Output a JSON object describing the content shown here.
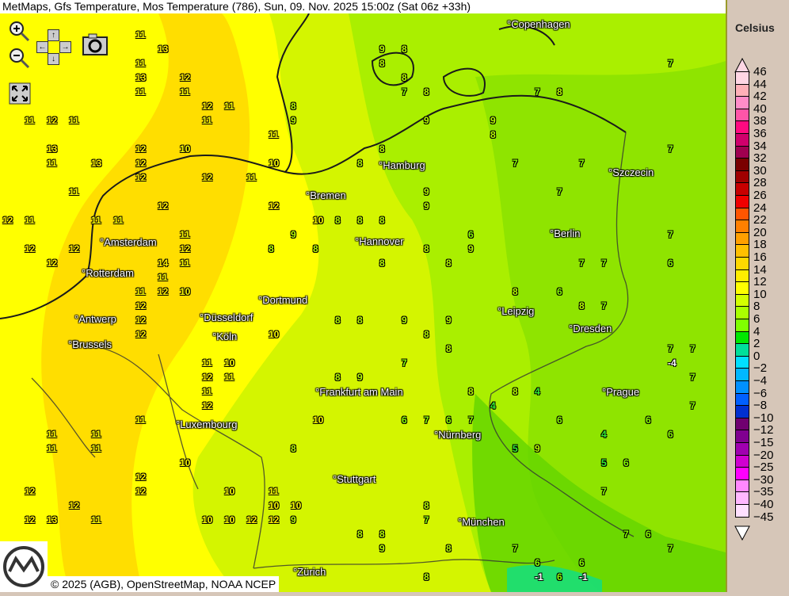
{
  "title": "MetMaps, Gfs Temperature, Mos Temperature (786), Sun, 09. Nov. 2025 15:00z (Sat 06z +33h)",
  "footer": "© 2025 (AGB), OpenStreetMap, NOAA NCEP",
  "logo_text": "METMAPS",
  "controls": {
    "icons": [
      "zoom-in-icon",
      "zoom-out-icon",
      "pan-up-icon",
      "pan-left-icon",
      "pan-right-icon",
      "pan-down-icon",
      "camera-icon",
      "fullscreen-icon"
    ]
  },
  "legend": {
    "title": "Celsius",
    "labels": [
      "46",
      "44",
      "42",
      "40",
      "38",
      "36",
      "34",
      "32",
      "30",
      "28",
      "26",
      "24",
      "22",
      "20",
      "18",
      "16",
      "14",
      "12",
      "10",
      "8",
      "6",
      "4",
      "2",
      "0",
      "−2",
      "−4",
      "−6",
      "−8",
      "−10",
      "−12",
      "−15",
      "−20",
      "−25",
      "−30",
      "−35",
      "−40",
      "−45"
    ],
    "colors": [
      "#ffd6e4",
      "#ffb0b8",
      "#ff8cc8",
      "#ff55a8",
      "#ff0a80",
      "#d0006c",
      "#a00050",
      "#7a0000",
      "#a00000",
      "#c80000",
      "#f00000",
      "#ff5500",
      "#ff8000",
      "#ffa000",
      "#ffc000",
      "#ffd800",
      "#ffee00",
      "#ffff00",
      "#d4ff00",
      "#aaff00",
      "#80ff00",
      "#00e800",
      "#00e09a",
      "#00e0ff",
      "#00b8ff",
      "#0090ff",
      "#0060ff",
      "#0030d0",
      "#700070",
      "#800090",
      "#a000b0",
      "#d000d0",
      "#ff00ff",
      "#ff88ff",
      "#ffb8ff",
      "#ffe0ff"
    ]
  },
  "cities": [
    "Copenhagen",
    "Hamburg",
    "Szczecin",
    "Bremen",
    "Amsterdam",
    "Hannover",
    "Berlin",
    "Rotterdam",
    "Dortmund",
    "Antwerp",
    "Düsseldorf",
    "Leipzig",
    "Dresden",
    "Brussels",
    "Köln",
    "Prague",
    "Frankfurt am Main",
    "Luxembourg",
    "Nürnberg",
    "Stuttgart",
    "München",
    "Zürich"
  ],
  "values": [
    "12",
    "11",
    "12",
    "12",
    "12",
    "11",
    "12",
    "12",
    "11",
    "12",
    "12",
    "12",
    "12",
    "11",
    "12",
    "12",
    "13",
    "12",
    "12",
    "11",
    "11",
    "12",
    "12",
    "12",
    "11",
    "11",
    "13",
    "13",
    "12",
    "12",
    "12",
    "11",
    "12",
    "14",
    "13",
    "12",
    "11",
    "12",
    "11",
    "11",
    "13",
    "11",
    "12",
    "12",
    "11",
    "12",
    "11",
    "10",
    "12",
    "11",
    "11",
    "11",
    "11",
    "11",
    "10",
    "10",
    "11",
    "10",
    "10",
    "10",
    "11",
    "10",
    "11",
    "11",
    "11",
    "11",
    "11",
    "11",
    "10",
    "10",
    "11",
    "9",
    "8",
    "8",
    "9",
    "7",
    "8",
    "7",
    "8",
    "8",
    "8",
    "7",
    "7",
    "7",
    "6",
    "6",
    "6",
    "6",
    "6",
    "7",
    "7",
    "7",
    "7",
    "6",
    "6",
    "6",
    "9",
    "8",
    "9",
    "8",
    "8",
    "9",
    "8",
    "8",
    "8",
    "7",
    "8",
    "7",
    "7",
    "8",
    "7",
    "9",
    "9",
    "9",
    "8",
    "8",
    "8",
    "8",
    "7",
    "8",
    "7",
    "7",
    "7",
    "8",
    "8",
    "9",
    "7",
    "7",
    "4",
    "4",
    "6",
    "6",
    "6",
    "4",
    "5",
    "6",
    "5",
    "6",
    "7",
    "8",
    "8",
    "8",
    "9",
    "9",
    "9",
    "8",
    "8",
    "7",
    "8",
    "8",
    "7",
    "8",
    "-1",
    "-4",
    "-1",
    "10",
    "10",
    "10",
    "10",
    "9",
    "9",
    "8",
    "7",
    "8",
    "8"
  ],
  "colors": {
    "yellow": "#ffff00",
    "amber": "#ffd800",
    "lime": "#d4f500",
    "green": "#9de600",
    "deep_green": "#5fd000"
  }
}
